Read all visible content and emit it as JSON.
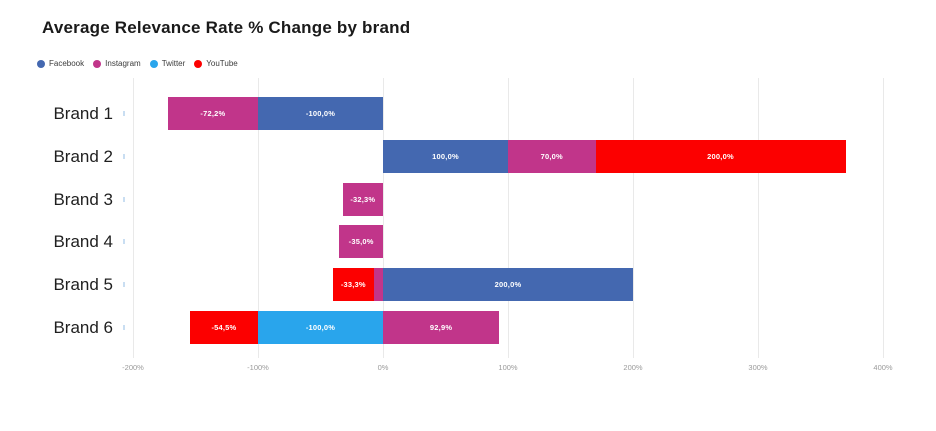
{
  "title": "Average Relevance Rate % Change by brand",
  "legend": [
    {
      "label": "Facebook",
      "color": "#4468b0"
    },
    {
      "label": "Instagram",
      "color": "#c1358a"
    },
    {
      "label": "Twitter",
      "color": "#29a5ec"
    },
    {
      "label": "YouTube",
      "color": "#fc0000"
    }
  ],
  "colors": {
    "gridline": "#e9e9e9",
    "axis_text": "#9a9a9a",
    "bar_label_text": "#ffffff"
  },
  "chart_data": {
    "type": "bar",
    "orientation": "horizontal",
    "stacked": true,
    "title": "Average Relevance Rate % Change by brand",
    "xlabel": "",
    "ylabel": "",
    "xlim": [
      -200,
      400
    ],
    "grid": true,
    "legend_position": "top-left",
    "x_ticks": [
      {
        "value": -200,
        "label": "-200%"
      },
      {
        "value": -100,
        "label": "-100%"
      },
      {
        "value": 0,
        "label": "0%"
      },
      {
        "value": 100,
        "label": "100%"
      },
      {
        "value": 200,
        "label": "200%"
      },
      {
        "value": 300,
        "label": "300%"
      },
      {
        "value": 400,
        "label": "400%"
      }
    ],
    "categories": [
      "Brand 1",
      "Brand 2",
      "Brand 3",
      "Brand 4",
      "Brand 5",
      "Brand 6"
    ],
    "rows": [
      {
        "category": "Brand 1",
        "segments": [
          {
            "series": "Facebook",
            "value": -100.0,
            "label": "-100,0%"
          },
          {
            "series": "Instagram",
            "value": -72.2,
            "label": "-72,2%"
          }
        ]
      },
      {
        "category": "Brand 2",
        "segments": [
          {
            "series": "Facebook",
            "value": 100.0,
            "label": "100,0%"
          },
          {
            "series": "Instagram",
            "value": 70.0,
            "label": "70,0%"
          },
          {
            "series": "YouTube",
            "value": 200.0,
            "label": "200,0%"
          }
        ]
      },
      {
        "category": "Brand 3",
        "segments": [
          {
            "series": "Instagram",
            "value": -32.3,
            "label": "-32,3%"
          }
        ]
      },
      {
        "category": "Brand 4",
        "segments": [
          {
            "series": "Instagram",
            "value": -35.0,
            "label": "-35,0%"
          }
        ]
      },
      {
        "category": "Brand 5",
        "segments": [
          {
            "series": "Instagram",
            "value": -7.1,
            "label": ""
          },
          {
            "series": "YouTube",
            "value": -33.3,
            "label": "-33,3%"
          },
          {
            "series": "Facebook",
            "value": 200.0,
            "label": "200,0%"
          }
        ]
      },
      {
        "category": "Brand 6",
        "segments": [
          {
            "series": "Twitter",
            "value": -100.0,
            "label": "-100,0%"
          },
          {
            "series": "YouTube",
            "value": -54.5,
            "label": "-54,5%"
          },
          {
            "series": "Instagram",
            "value": 92.9,
            "label": "92,9%"
          }
        ]
      }
    ]
  }
}
